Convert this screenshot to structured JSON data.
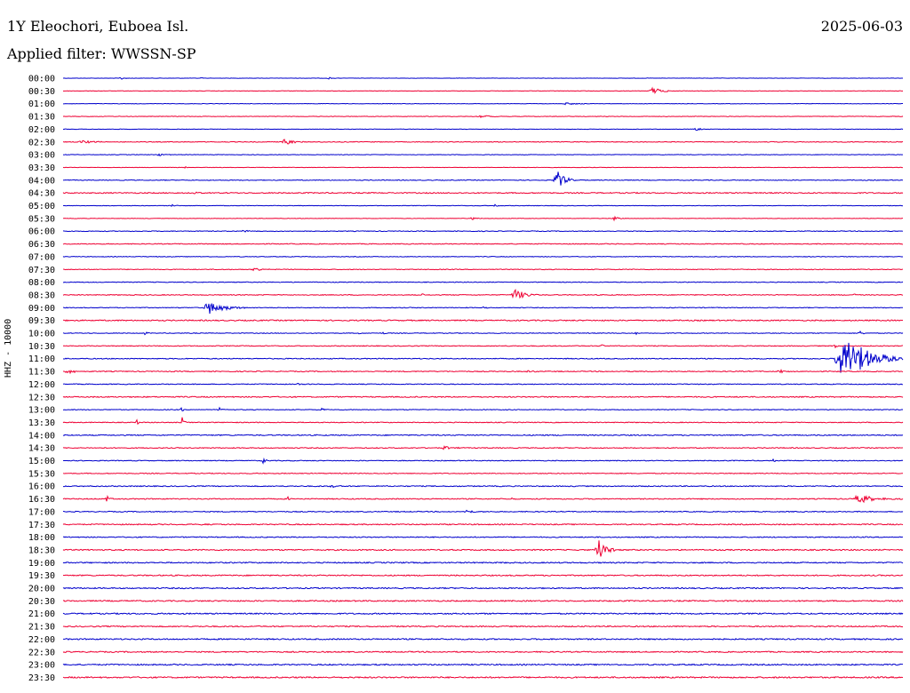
{
  "header": {
    "station": "1Y Eleochori, Euboea Isl.",
    "date": "2025-06-03",
    "filter_label": "Applied filter: WWSSN-SP"
  },
  "chart_data": {
    "type": "line",
    "title": "1Y Eleochori, Euboea Isl.",
    "ylabel": "HHZ - 10000",
    "xlabel": "",
    "x_unit": "minutes within 30-minute trace line",
    "x_range": [
      0,
      30
    ],
    "grid": false,
    "legend": "none",
    "colors": [
      "#0000cc",
      "#ee0033"
    ],
    "row_labels": [
      "00:00",
      "00:30",
      "01:00",
      "01:30",
      "02:00",
      "02:30",
      "03:00",
      "03:30",
      "04:00",
      "04:30",
      "05:00",
      "05:30",
      "06:00",
      "06:30",
      "07:00",
      "07:30",
      "08:00",
      "08:30",
      "09:00",
      "09:30",
      "10:00",
      "10:30",
      "11:00",
      "11:30",
      "12:00",
      "12:30",
      "13:00",
      "13:30",
      "14:00",
      "14:30",
      "15:00",
      "15:30",
      "16:00",
      "16:30",
      "17:00",
      "17:30",
      "18:00",
      "18:30",
      "19:00",
      "19:30",
      "20:00",
      "20:30",
      "21:00",
      "21:30",
      "22:00",
      "22:30",
      "23:00",
      "23:30"
    ],
    "noise": [
      0.4,
      0.5,
      0.5,
      0.6,
      0.5,
      0.8,
      0.6,
      0.5,
      0.8,
      1.2,
      0.6,
      0.5,
      0.8,
      0.9,
      0.7,
      0.8,
      0.8,
      0.9,
      0.8,
      1.3,
      0.8,
      0.9,
      1.0,
      1.0,
      0.9,
      1.2,
      0.8,
      0.9,
      1.2,
      1.0,
      0.9,
      0.9,
      1.1,
      1.1,
      1.0,
      1.2,
      1.1,
      1.3,
      1.3,
      1.3,
      1.3,
      1.4,
      1.4,
      1.3,
      1.4,
      1.3,
      1.4,
      1.5
    ],
    "events": [
      {
        "row": 0,
        "t": 2.0,
        "amp": 2,
        "dur": 0.4
      },
      {
        "row": 0,
        "t": 4.9,
        "amp": 1.5,
        "dur": 0.4
      },
      {
        "row": 0,
        "t": 9.4,
        "amp": 1.5,
        "dur": 0.4
      },
      {
        "row": 1,
        "t": 20.9,
        "amp": 4,
        "dur": 1.0
      },
      {
        "row": 2,
        "t": 17.8,
        "amp": 1.5,
        "dur": 1.0
      },
      {
        "row": 3,
        "t": 14.8,
        "amp": 1.5,
        "dur": 1.0
      },
      {
        "row": 4,
        "t": 22.5,
        "amp": 2,
        "dur": 0.6
      },
      {
        "row": 5,
        "t": 0.5,
        "amp": 2,
        "dur": 1.3
      },
      {
        "row": 5,
        "t": 7.8,
        "amp": 4,
        "dur": 0.8
      },
      {
        "row": 6,
        "t": 3.3,
        "amp": 1.5,
        "dur": 0.8
      },
      {
        "row": 7,
        "t": 4.3,
        "amp": 2,
        "dur": 0.2
      },
      {
        "row": 8,
        "t": 17.5,
        "amp": 12,
        "dur": 0.8
      },
      {
        "row": 9,
        "t": 4.6,
        "amp": 2.5,
        "dur": 0.6
      },
      {
        "row": 10,
        "t": 3.8,
        "amp": 2,
        "dur": 0.5
      },
      {
        "row": 10,
        "t": 15.3,
        "amp": 2,
        "dur": 0.4
      },
      {
        "row": 11,
        "t": 14.5,
        "amp": 2,
        "dur": 0.5
      },
      {
        "row": 11,
        "t": 19.6,
        "amp": 2.5,
        "dur": 0.5
      },
      {
        "row": 12,
        "t": 6.3,
        "amp": 1.5,
        "dur": 1.0
      },
      {
        "row": 15,
        "t": 6.7,
        "amp": 1.5,
        "dur": 0.8
      },
      {
        "row": 17,
        "t": 16.0,
        "amp": 7,
        "dur": 1.0
      },
      {
        "row": 17,
        "t": 12.8,
        "amp": 2,
        "dur": 0.2
      },
      {
        "row": 17,
        "t": 28.2,
        "amp": 2,
        "dur": 0.3
      },
      {
        "row": 18,
        "t": 5.0,
        "amp": 8,
        "dur": 1.5
      },
      {
        "row": 18,
        "t": 15.0,
        "amp": 2,
        "dur": 0.2
      },
      {
        "row": 20,
        "t": 2.9,
        "amp": 2,
        "dur": 0.2
      },
      {
        "row": 20,
        "t": 10.5,
        "amp": 2,
        "dur": 0.2
      },
      {
        "row": 20,
        "t": 11.4,
        "amp": 2,
        "dur": 0.2
      },
      {
        "row": 20,
        "t": 20.4,
        "amp": 1.5,
        "dur": 0.5
      },
      {
        "row": 20,
        "t": 28.4,
        "amp": 3,
        "dur": 0.3
      },
      {
        "row": 21,
        "t": 19.2,
        "amp": 2,
        "dur": 0.3
      },
      {
        "row": 21,
        "t": 27.5,
        "amp": 3,
        "dur": 0.3
      },
      {
        "row": 22,
        "t": 27.5,
        "amp": 28,
        "dur": 2.5
      },
      {
        "row": 23,
        "t": 0.0,
        "amp": 2,
        "dur": 1.3
      },
      {
        "row": 23,
        "t": 25.5,
        "amp": 2,
        "dur": 0.8
      },
      {
        "row": 23,
        "t": 16.5,
        "amp": 1.5,
        "dur": 0.6
      },
      {
        "row": 24,
        "t": 8.3,
        "amp": 1.5,
        "dur": 0.5
      },
      {
        "row": 26,
        "t": 4.2,
        "amp": 3,
        "dur": 0.2
      },
      {
        "row": 26,
        "t": 5.5,
        "amp": 2,
        "dur": 0.5
      },
      {
        "row": 26,
        "t": 9.2,
        "amp": 2.5,
        "dur": 0.2
      },
      {
        "row": 27,
        "t": 2.6,
        "amp": 6,
        "dur": 0.2
      },
      {
        "row": 27,
        "t": 4.2,
        "amp": 6,
        "dur": 0.3
      },
      {
        "row": 29,
        "t": 13.5,
        "amp": 2,
        "dur": 0.8
      },
      {
        "row": 30,
        "t": 7.1,
        "amp": 4,
        "dur": 0.3
      },
      {
        "row": 30,
        "t": 25.3,
        "amp": 2,
        "dur": 0.3
      },
      {
        "row": 32,
        "t": 9.5,
        "amp": 1.5,
        "dur": 0.6
      },
      {
        "row": 33,
        "t": 1.5,
        "amp": 4,
        "dur": 0.3
      },
      {
        "row": 33,
        "t": 8.0,
        "amp": 3,
        "dur": 0.2
      },
      {
        "row": 33,
        "t": 16.0,
        "amp": 2,
        "dur": 0.2
      },
      {
        "row": 33,
        "t": 28.2,
        "amp": 5,
        "dur": 1.5
      },
      {
        "row": 34,
        "t": 14.3,
        "amp": 2,
        "dur": 0.8
      },
      {
        "row": 35,
        "t": 4.9,
        "amp": 3,
        "dur": 0.2
      },
      {
        "row": 37,
        "t": 19.0,
        "amp": 16,
        "dur": 0.8
      },
      {
        "row": 38,
        "t": 15.9,
        "amp": 2,
        "dur": 0.2
      },
      {
        "row": 47,
        "t": 1.6,
        "amp": 3,
        "dur": 0.2
      }
    ]
  }
}
